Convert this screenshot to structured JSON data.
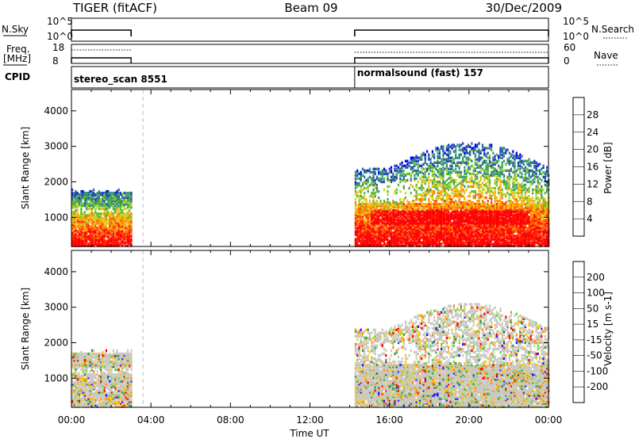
{
  "header": {
    "radar": "TIGER (fitACF)",
    "beam": "Beam 09",
    "date": "30/Dec/2009"
  },
  "params": {
    "nsky_label": "N.Sky",
    "nsearch_label": "N.Search",
    "nsky_ticks": [
      "10^5",
      "10^0"
    ],
    "nsearch_ticks": [
      "10^5",
      "10^0"
    ],
    "freq_label_line1": "Freq.",
    "freq_label_line2": "[MHz]",
    "freq_ticks": [
      "18",
      "8"
    ],
    "nave_label": "Nave",
    "nave_ticks": [
      "60",
      "0"
    ],
    "cpid_label": "CPID",
    "cpid_segments": [
      {
        "name": "stereo_scan 8551",
        "start_hour": 0.0,
        "end_hour": 3.0
      },
      {
        "name": "normalsound (fast) 157",
        "start_hour": 14.25,
        "end_hour": 24.0
      }
    ]
  },
  "chart_data": [
    {
      "type": "heatmap",
      "name": "power-panel",
      "xlabel": "",
      "ylabel": "Slant Range [km]",
      "xlim": [
        0,
        24
      ],
      "ylim": [
        180,
        4600
      ],
      "yticks": [
        "4000",
        "3000",
        "2000",
        "1000"
      ],
      "colorbar": {
        "label": "Power [dB]",
        "ticks": [
          "28",
          "24",
          "20",
          "16",
          "12",
          "8",
          "4"
        ],
        "colors": [
          "#0000ff",
          "#1e3fbd",
          "#2f6f8f",
          "#3c9a6e",
          "#53c02a",
          "#c8d22a",
          "#ffb400",
          "#ff7a00",
          "#ff3a00",
          "#ff0000"
        ]
      },
      "data_segments_hours": [
        [
          0.0,
          3.0
        ],
        [
          14.25,
          24.0
        ]
      ],
      "scan_gap_line_hour": 3.6
    },
    {
      "type": "heatmap",
      "name": "velocity-panel",
      "xlabel": "Time UT",
      "ylabel": "Slant Range [km]",
      "xlim": [
        0,
        24
      ],
      "ylim": [
        180,
        4600
      ],
      "xticks": [
        "00:00",
        "04:00",
        "08:00",
        "12:00",
        "16:00",
        "20:00",
        "00:00"
      ],
      "yticks": [
        "4000",
        "3000",
        "2000",
        "1000"
      ],
      "colorbar": {
        "label": "Velocity [m s-1]",
        "ticks": [
          "200",
          "100",
          "50",
          "15",
          "-15",
          "-50",
          "-100",
          "-200"
        ],
        "colors": [
          "#1a1aff",
          "#2a6fbf",
          "#2e9a4a",
          "#66d43a",
          "#c8c8c0",
          "#ffc400",
          "#ff8800",
          "#ff4a00",
          "#ff0000"
        ]
      },
      "data_segments_hours": [
        [
          0.0,
          3.0
        ],
        [
          14.25,
          24.0
        ]
      ],
      "scan_gap_line_hour": 3.6
    }
  ]
}
